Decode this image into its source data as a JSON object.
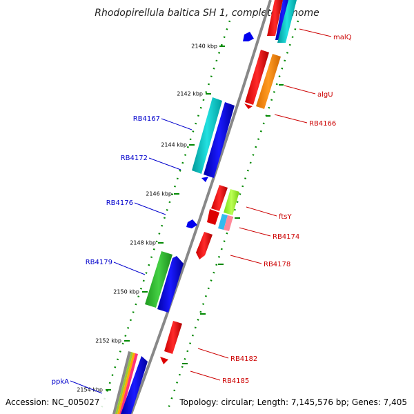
{
  "title": "Rhodopirellula baltica SH 1, complete genome",
  "accession": "Accession: NC_005027",
  "topology": "Topology: circular; Length: 7,145,576 bp; Genes: 7,405",
  "ticks": [
    "2140 kbp",
    "2142 kbp",
    "2144 kbp",
    "2146 kbp",
    "2148 kbp",
    "2150 kbp",
    "2152 kbp",
    "2154 kbp"
  ],
  "gene_labels_left": [
    "RB4167",
    "RB4172",
    "RB4176",
    "RB4179",
    "ppkA"
  ],
  "gene_labels_right": [
    "malQ",
    "algU",
    "RB4166",
    "ftsY",
    "RB4174",
    "RB4178",
    "RB4182",
    "RB4185"
  ],
  "colors": {
    "backbone": "#808080",
    "forward_label": "#0000cc",
    "reverse_label": "#cc0000",
    "tick_mark": "#008800",
    "red": "#ff0000",
    "blue": "#0000ee",
    "cyan": "#00cccc",
    "orange": "#ff8800",
    "green": "#33bb33",
    "lime": "#99ff33",
    "pink": "#ff6688"
  }
}
